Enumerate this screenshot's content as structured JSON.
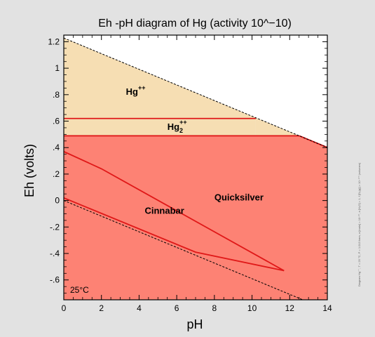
{
  "chart_data": {
    "type": "diagram",
    "title": "Eh -pH diagram of Hg (activity 10^−10)",
    "xlabel": "pH",
    "ylabel": "Eh (volts)",
    "xlim": [
      0,
      14
    ],
    "ylim": [
      -0.75,
      1.25
    ],
    "xticks": [
      0,
      2,
      4,
      6,
      8,
      10,
      12,
      14
    ],
    "xtick_labels": [
      "0",
      "2",
      "4",
      "6",
      "8",
      "10",
      "12",
      "14"
    ],
    "yticks": [
      1.2,
      1.0,
      0.8,
      0.6,
      0.4,
      0.2,
      0,
      -0.2,
      -0.4,
      -0.6
    ],
    "ytick_labels": [
      "1.2",
      "1",
      ".8",
      ".6",
      ".4",
      ".2",
      "0",
      "-.2",
      "-.4",
      "-.6"
    ],
    "grid": false,
    "temperature_label": "25°C",
    "side_note": "Diagram Hg⁺⁺, T = 25 °C, P = 1.013 bars, a [main] = 10⁻¹⁰, a [H₂O] = 1, f [O₂(g)] = 10⁻⁵⁰⁰ (volumes)",
    "water_stability": {
      "upper": [
        [
          0,
          1.228
        ],
        [
          14,
          0.401
        ]
      ],
      "lower": [
        [
          0,
          0.0
        ],
        [
          14,
          -0.827
        ]
      ]
    },
    "regions": [
      {
        "name": "Hg++",
        "label_main": "Hg",
        "label_sup": "++",
        "label_sub": "",
        "color": "#f6deb3",
        "label_at": [
          3.3,
          0.8
        ],
        "polygon": [
          [
            0,
            1.228
          ],
          [
            12.51,
            0.489
          ],
          [
            12.51,
            0.489
          ],
          [
            10.2,
            0.489
          ],
          [
            10.2,
            0.62
          ],
          [
            0,
            0.62
          ]
        ]
      },
      {
        "name": "Hg2++",
        "label_main": "Hg",
        "label_sup": "++",
        "label_sub": "2",
        "color": "#f6deb3",
        "label_at": [
          5.5,
          0.535
        ],
        "polygon": [
          [
            0,
            0.62
          ],
          [
            10.2,
            0.62
          ],
          [
            10.2,
            0.489
          ],
          [
            0,
            0.489
          ]
        ]
      },
      {
        "name": "Quicksilver",
        "label_main": "Quicksilver",
        "label_sup": "",
        "label_sub": "",
        "color": "#fd8274",
        "label_at": [
          8,
          0.0
        ],
        "polygon": [
          [
            0,
            0.489
          ],
          [
            12.51,
            0.489
          ],
          [
            14,
            0.401
          ],
          [
            14,
            -0.827
          ],
          [
            0,
            -0.827
          ]
        ]
      },
      {
        "name": "Cinnabar",
        "label_main": "Cinnabar",
        "label_sup": "",
        "label_sub": "",
        "color": "#fd8274",
        "label_at": [
          4.3,
          -0.1
        ],
        "polygon": [
          [
            0,
            0.37
          ],
          [
            2,
            0.24
          ],
          [
            11.7,
            -0.53
          ],
          [
            7,
            -0.39
          ],
          [
            0,
            0.02
          ]
        ]
      }
    ],
    "boundaries": [
      {
        "name": "Hg++/Hg2++",
        "color": "#e01818",
        "points": [
          [
            0,
            0.62
          ],
          [
            10.2,
            0.62
          ]
        ]
      },
      {
        "name": "Hg2++/Quicksilver",
        "color": "#e01818",
        "points": [
          [
            0,
            0.489
          ],
          [
            12.51,
            0.489
          ]
        ]
      },
      {
        "name": "Hg2++/Quicksilver edge",
        "color": "#e01818",
        "points": [
          [
            12.51,
            0.489
          ],
          [
            14,
            0.401
          ]
        ]
      },
      {
        "name": "Cinnabar upper",
        "color": "#e01818",
        "points": [
          [
            0,
            0.37
          ],
          [
            2,
            0.24
          ],
          [
            11.7,
            -0.53
          ]
        ]
      },
      {
        "name": "Cinnabar lower",
        "color": "#e01818",
        "points": [
          [
            0,
            0.02
          ],
          [
            7,
            -0.39
          ],
          [
            11.7,
            -0.53
          ]
        ]
      }
    ],
    "colors": {
      "background": "#e2e2e2",
      "frame": "#000000",
      "region_light": "#f6deb3",
      "region_red": "#fd8274",
      "boundary": "#e01818",
      "water_line": "#000000"
    }
  }
}
